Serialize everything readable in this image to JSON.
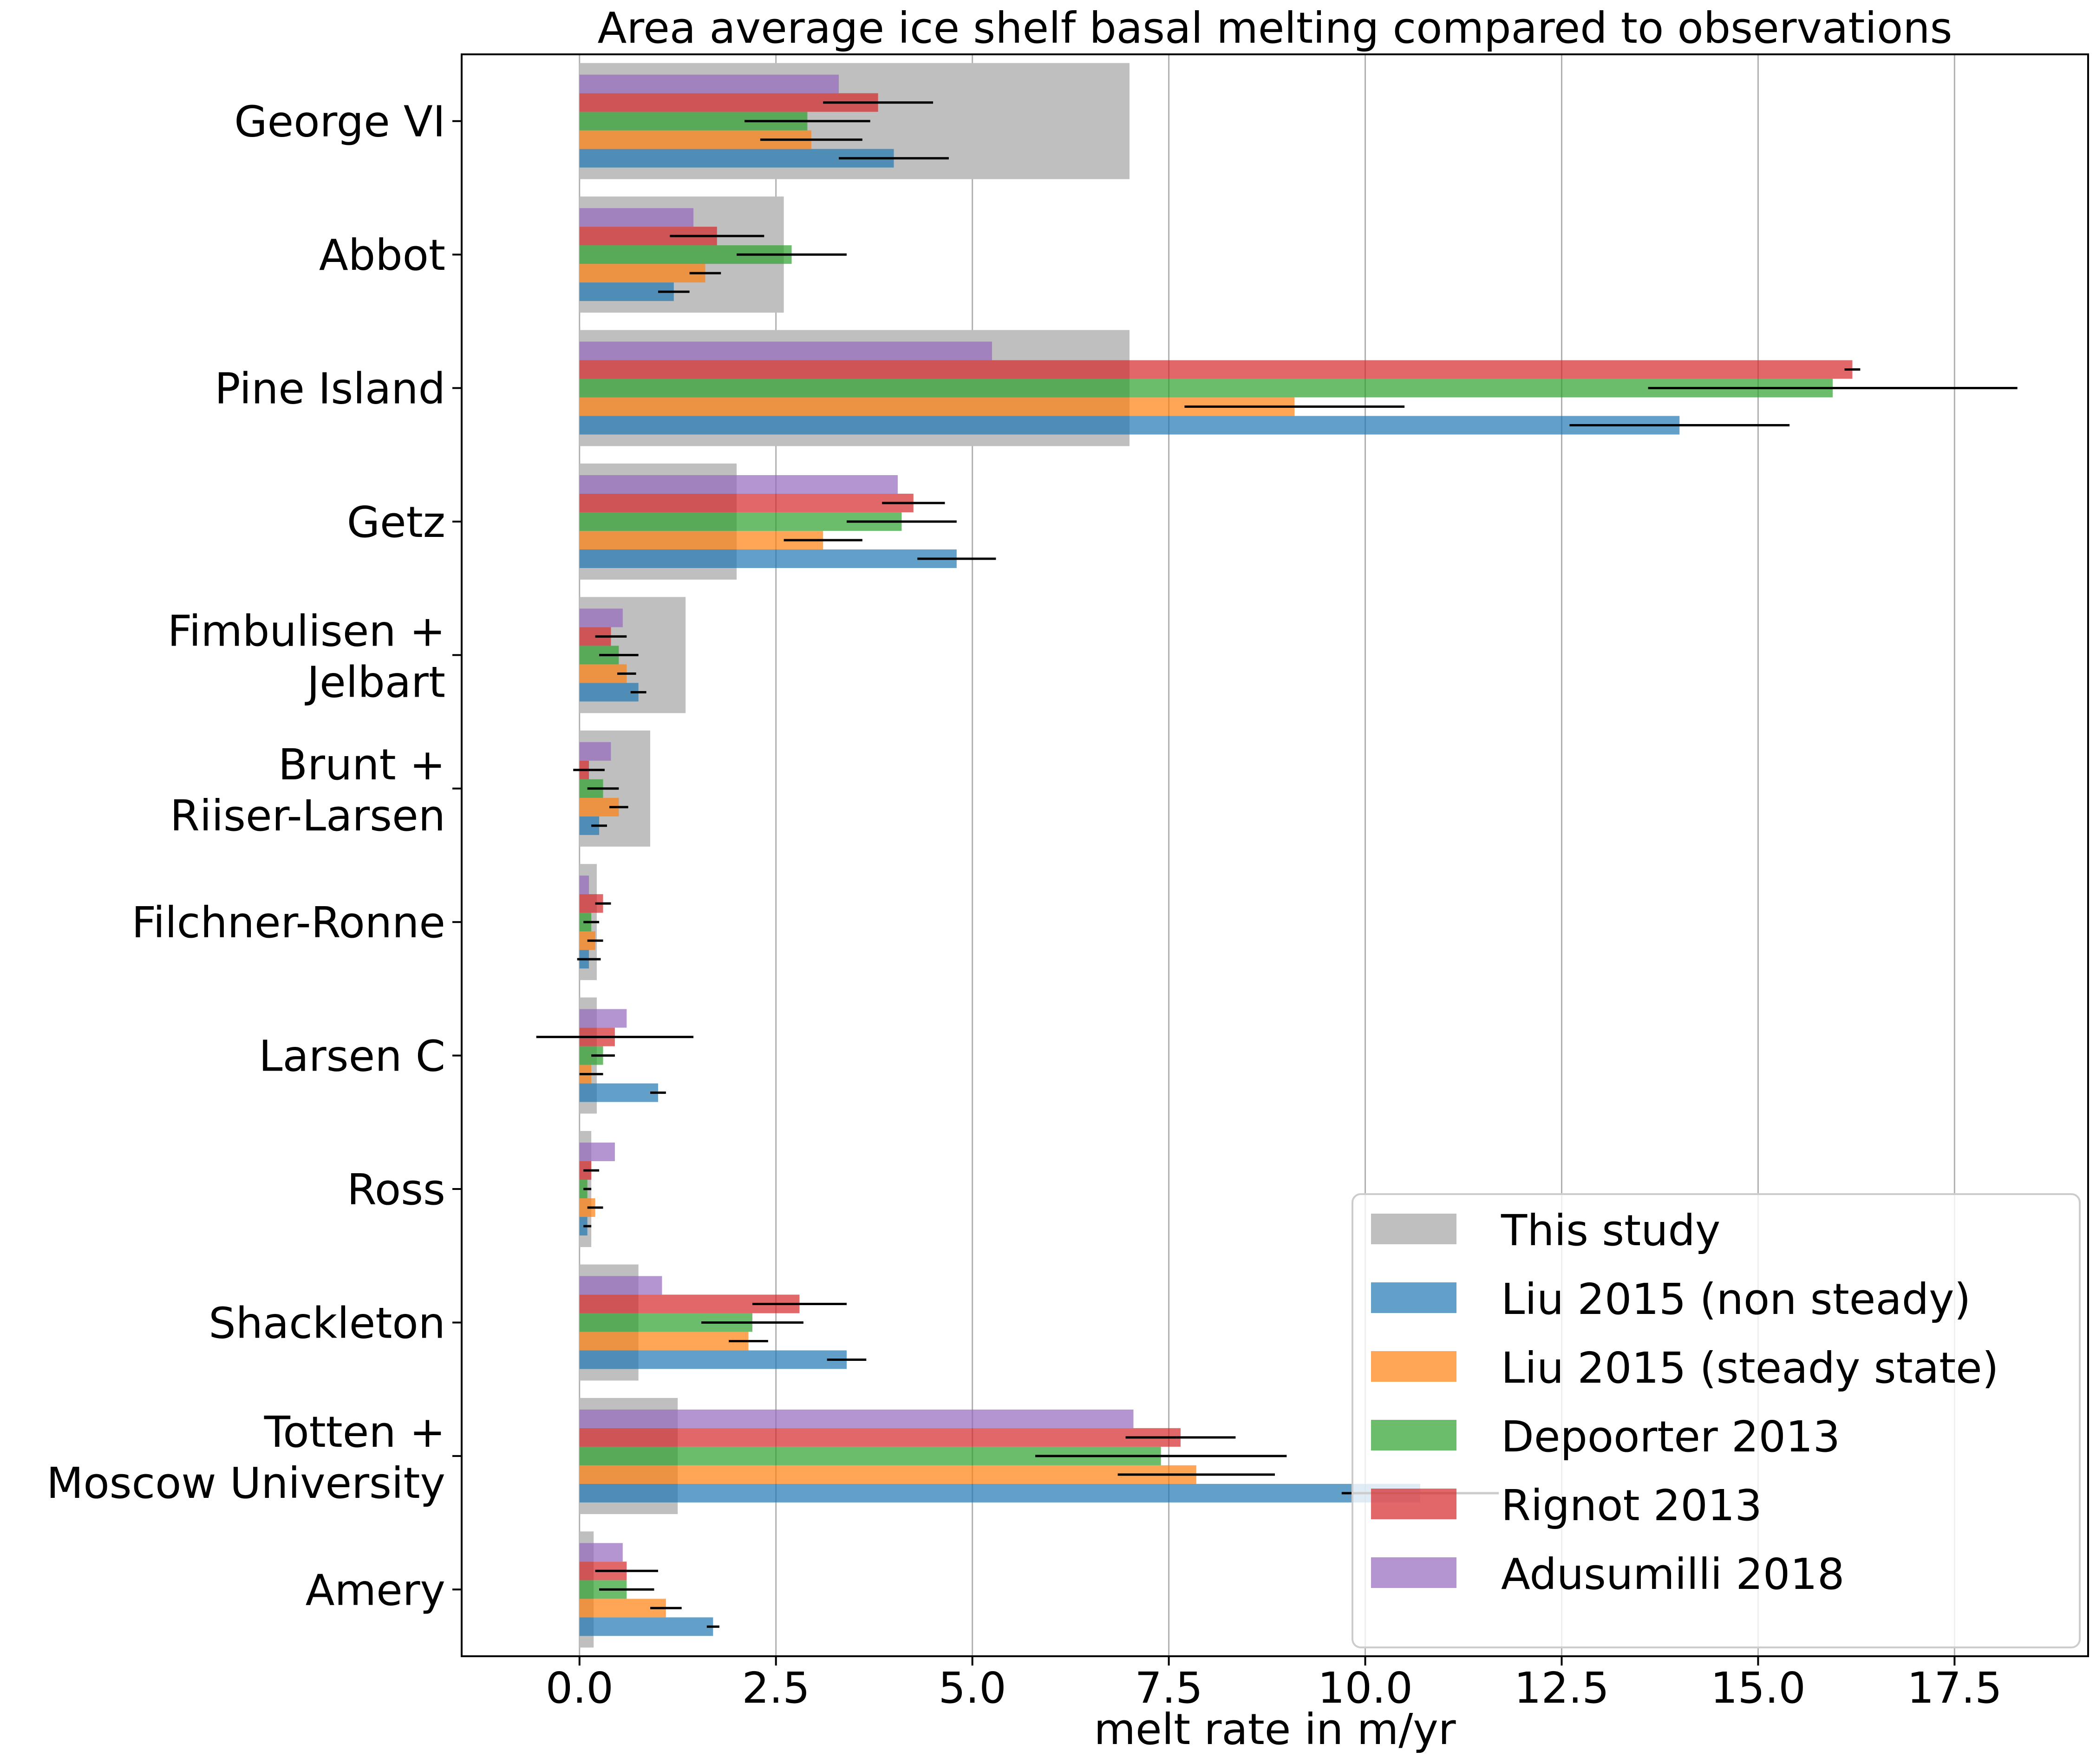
{
  "chart_data": {
    "type": "bar",
    "orientation": "horizontal",
    "title": "Area average ice shelf basal melting compared to observations",
    "xlabel": "melt rate in m/yr",
    "ylabel": "",
    "xlim": [
      -1.5,
      19.2
    ],
    "xticks": [
      0.0,
      2.5,
      5.0,
      7.5,
      10.0,
      12.5,
      15.0,
      17.5
    ],
    "xtick_labels": [
      "0.0",
      "2.5",
      "5.0",
      "7.5",
      "10.0",
      "12.5",
      "15.0",
      "17.5"
    ],
    "grid": "x",
    "legend_position": "lower-right",
    "categories": [
      "George VI\n",
      "Abbot",
      "Pine Island",
      "Getz",
      "Fimbulisen +\nJelbart",
      "Brunt +\nRiiser-Larsen",
      "Filchner-Ronne",
      "Larsen C",
      "Ross",
      "Shackleton",
      "Totten +\nMoscow University",
      "Amery"
    ],
    "background_series": {
      "name": "This study",
      "color": "#bfbfbf",
      "values": [
        7.0,
        2.6,
        7.0,
        2.0,
        1.35,
        0.9,
        0.22,
        0.22,
        0.15,
        0.75,
        1.25,
        0.18
      ]
    },
    "series": [
      {
        "name": "Liu 2015 (non steady)",
        "color": "#1f77b4",
        "values": [
          4.0,
          1.2,
          14.0,
          4.8,
          0.75,
          0.25,
          0.12,
          1.0,
          0.1,
          3.4,
          10.7,
          1.7
        ],
        "errors": [
          0.7,
          0.2,
          1.4,
          0.5,
          0.1,
          0.1,
          0.15,
          0.1,
          0.05,
          0.25,
          1.0,
          0.08
        ]
      },
      {
        "name": "Liu 2015 (steady state)",
        "color": "#ff7f0e",
        "values": [
          2.95,
          1.6,
          9.1,
          3.1,
          0.6,
          0.5,
          0.2,
          0.15,
          0.2,
          2.15,
          7.85,
          1.1
        ],
        "errors": [
          0.65,
          0.2,
          1.4,
          0.5,
          0.12,
          0.12,
          0.1,
          0.15,
          0.1,
          0.25,
          1.0,
          0.2
        ]
      },
      {
        "name": "Depoorter 2013",
        "color": "#2ca02c",
        "values": [
          2.9,
          2.7,
          15.95,
          4.1,
          0.5,
          0.3,
          0.15,
          0.3,
          0.1,
          2.2,
          7.4,
          0.6
        ],
        "errors": [
          0.8,
          0.7,
          2.35,
          0.7,
          0.25,
          0.2,
          0.1,
          0.15,
          0.05,
          0.65,
          1.6,
          0.35
        ]
      },
      {
        "name": "Rignot 2013",
        "color": "#d62728",
        "values": [
          3.8,
          1.75,
          16.2,
          4.25,
          0.4,
          0.12,
          0.3,
          0.45,
          0.15,
          2.8,
          7.65,
          0.6
        ],
        "errors": [
          0.7,
          0.6,
          0.1,
          0.4,
          0.2,
          0.2,
          0.1,
          1.0,
          0.1,
          0.6,
          0.7,
          0.4
        ]
      },
      {
        "name": "Adusumilli 2018",
        "color": "#9467bd",
        "values": [
          3.3,
          1.45,
          5.25,
          4.05,
          0.55,
          0.4,
          0.12,
          0.6,
          0.45,
          1.05,
          7.05,
          0.55
        ],
        "errors": [
          0,
          0,
          0,
          0,
          0,
          0,
          0,
          0,
          0,
          0,
          0,
          0
        ]
      }
    ]
  }
}
